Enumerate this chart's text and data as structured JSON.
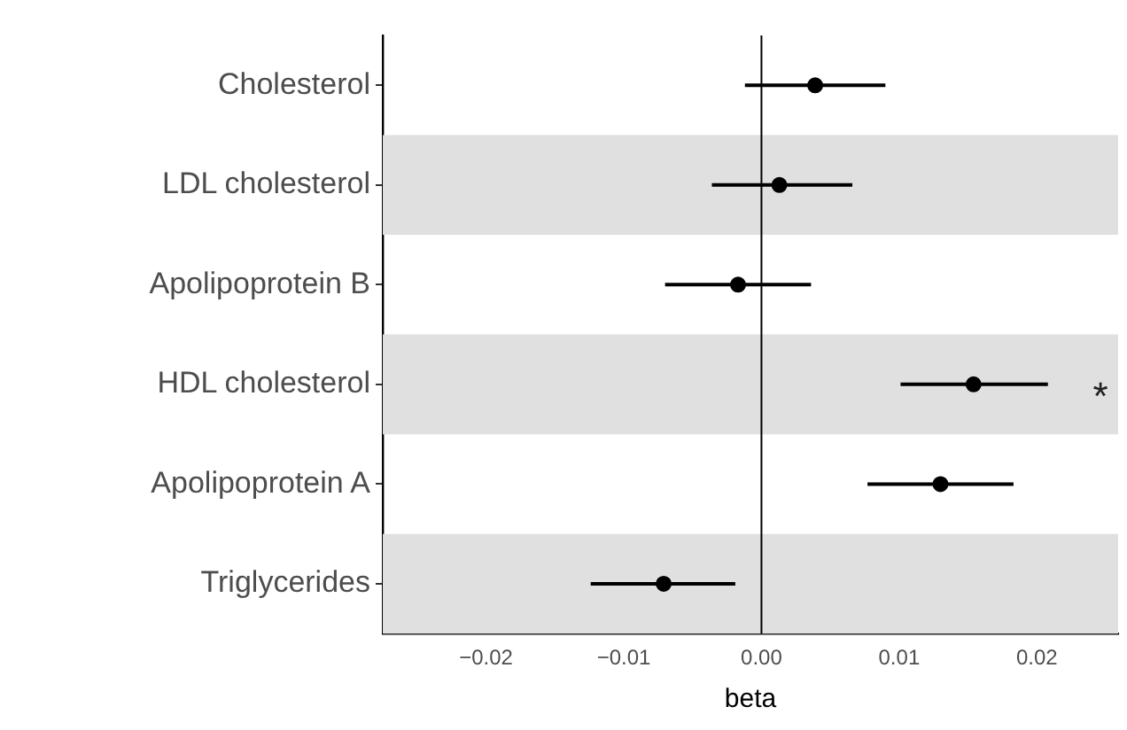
{
  "chart_data": {
    "type": "scatter",
    "orientation": "horizontal",
    "xlabel": "beta",
    "categories": [
      "Cholesterol",
      "LDL cholesterol",
      "Apolipoprotein B",
      "HDL cholesterol",
      "Apolipoprotein A",
      "Triglycerides"
    ],
    "values": [
      0.0039,
      0.0013,
      -0.0017,
      0.0154,
      0.013,
      -0.0071
    ],
    "errors": [
      [
        -0.0012,
        0.009
      ],
      [
        -0.0036,
        0.0066
      ],
      [
        -0.007,
        0.0036
      ],
      [
        0.0101,
        0.0208
      ],
      [
        0.0077,
        0.0183
      ],
      [
        -0.0124,
        -0.0019
      ]
    ],
    "color": "#000000",
    "marker": "circle",
    "xlim": [
      -0.0275,
      0.0259
    ],
    "xticks": [
      {
        "value": -0.02,
        "label": "−0.02"
      },
      {
        "value": -0.01,
        "label": "−0.01"
      },
      {
        "value": 0,
        "label": "0.00"
      },
      {
        "value": 0.01,
        "label": "0.01"
      },
      {
        "value": 0.02,
        "label": "0.02"
      }
    ],
    "ref_lines": [
      {
        "axis": "x",
        "value": 0,
        "color": "#000000"
      }
    ],
    "bands": [
      {
        "axis": "y",
        "from": "LDL cholesterol",
        "to": "LDL cholesterol",
        "color": "#e0e0e0"
      },
      {
        "axis": "y",
        "from": "HDL cholesterol",
        "to": "HDL cholesterol",
        "color": "#e0e0e0"
      },
      {
        "axis": "y",
        "from": "Triglycerides",
        "to": "Triglycerides",
        "color": "#e0e0e0"
      }
    ],
    "value_labels": [
      null,
      null,
      null,
      "*",
      null,
      null
    ],
    "grid": false,
    "legend": false
  }
}
